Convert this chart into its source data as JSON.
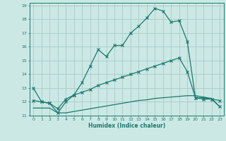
{
  "xlabel": "Humidex (Indice chaleur)",
  "bg_color": "#cce8e5",
  "grid_color": "#aacfcc",
  "line_color": "#1a7a6e",
  "xlim": [
    -0.5,
    23.5
  ],
  "ylim": [
    11,
    19.2
  ],
  "xticks": [
    0,
    1,
    2,
    3,
    4,
    5,
    6,
    7,
    8,
    9,
    10,
    11,
    12,
    13,
    14,
    15,
    16,
    17,
    18,
    19,
    20,
    21,
    22,
    23
  ],
  "yticks": [
    11,
    12,
    13,
    14,
    15,
    16,
    17,
    18,
    19
  ],
  "series1_x": [
    0,
    1,
    2,
    3,
    4,
    5,
    6,
    7,
    8,
    9,
    10,
    11,
    12,
    13,
    14,
    15,
    16,
    17,
    18,
    19,
    20,
    21,
    22,
    23
  ],
  "series1_y": [
    13.0,
    12.0,
    11.9,
    11.2,
    12.0,
    12.5,
    13.4,
    14.6,
    15.8,
    15.3,
    16.1,
    16.1,
    17.0,
    17.5,
    18.1,
    18.8,
    18.6,
    17.8,
    17.9,
    16.4,
    12.3,
    12.3,
    12.2,
    11.65
  ],
  "series2_x": [
    0,
    1,
    2,
    3,
    4,
    5,
    6,
    7,
    8,
    9,
    10,
    11,
    12,
    13,
    14,
    15,
    16,
    17,
    18,
    19,
    20,
    21,
    22,
    23
  ],
  "series2_y": [
    12.1,
    12.0,
    11.9,
    11.5,
    12.2,
    12.5,
    12.7,
    12.9,
    13.2,
    13.4,
    13.6,
    13.8,
    14.0,
    14.2,
    14.4,
    14.6,
    14.8,
    15.0,
    15.2,
    14.2,
    12.3,
    12.2,
    12.2,
    12.1
  ],
  "series3_x": [
    0,
    1,
    2,
    3,
    4,
    5,
    6,
    7,
    8,
    9,
    10,
    11,
    12,
    13,
    14,
    15,
    16,
    17,
    18,
    19,
    20,
    21,
    22,
    23
  ],
  "series3_y": [
    11.55,
    11.55,
    11.55,
    11.2,
    11.2,
    11.3,
    11.4,
    11.5,
    11.6,
    11.7,
    11.8,
    11.9,
    12.0,
    12.1,
    12.15,
    12.25,
    12.3,
    12.35,
    12.4,
    12.45,
    12.45,
    12.35,
    12.25,
    11.65
  ]
}
